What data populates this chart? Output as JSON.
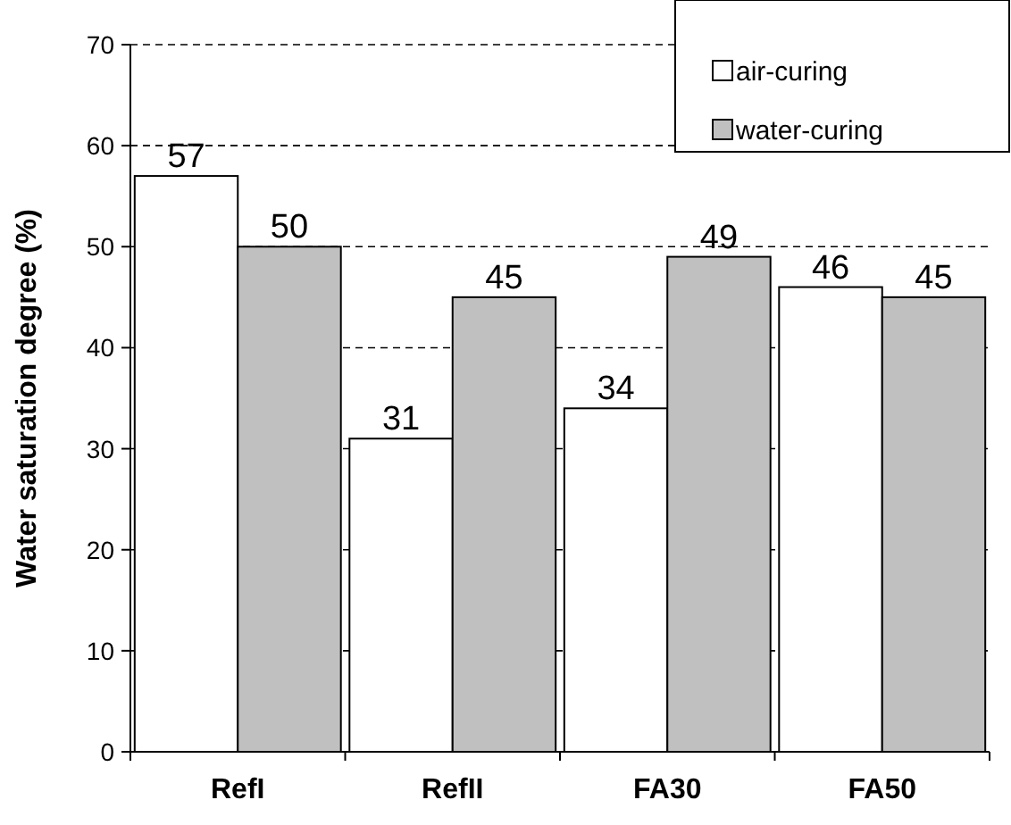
{
  "chart_data": {
    "type": "bar",
    "ylabel": "Water saturation degree (%)",
    "categories": [
      "RefI",
      "RefII",
      "FA30",
      "FA50"
    ],
    "series": [
      {
        "name": "air-curing",
        "color": "#ffffff",
        "values": [
          57,
          31,
          34,
          46
        ]
      },
      {
        "name": "water-curing",
        "color": "#c0c0c0",
        "values": [
          50,
          45,
          49,
          45
        ]
      }
    ],
    "ylim": [
      0,
      70
    ],
    "yticks": [
      0,
      10,
      20,
      30,
      40,
      50,
      60,
      70
    ],
    "grid": "y",
    "legend": "top right",
    "data_labels": true
  }
}
